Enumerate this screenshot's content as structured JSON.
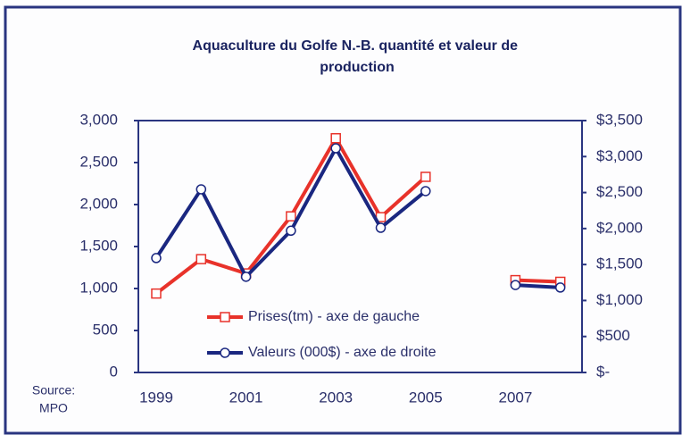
{
  "chart_data": {
    "type": "line",
    "title": "Aquaculture du Golfe N.-B. quantité et valeur de production",
    "source": [
      "Source:",
      "MPO"
    ],
    "categories": [
      "1999",
      null,
      "2001",
      null,
      "2003",
      null,
      "2005",
      null,
      "2007",
      null
    ],
    "series": [
      {
        "name": "Prises(tm) - axe de gauche",
        "color": "#e8322a",
        "marker": "square",
        "axis": "y",
        "values": [
          940,
          1350,
          1180,
          1860,
          2790,
          1850,
          2330,
          null,
          1100,
          1080
        ]
      },
      {
        "name": "Valeurs (000$) - axe de droite",
        "color": "#1a2780",
        "marker": "circle",
        "axis": "y2",
        "values": [
          1590,
          2545,
          1330,
          1970,
          3115,
          2010,
          2520,
          null,
          1215,
          1180
        ]
      }
    ],
    "ylim": [
      0,
      3000
    ],
    "yticks": [
      0,
      500,
      {
        "value": 1000,
        "label": "1,000"
      },
      {
        "value": 1500,
        "label": "1,500"
      },
      {
        "value": 2000,
        "label": "2,000"
      },
      {
        "value": 2500,
        "label": "2,500"
      },
      {
        "value": 3000,
        "label": "3,000"
      }
    ],
    "y2lim": [
      0,
      3500
    ],
    "y2ticks": [
      {
        "value": 0,
        "label": "$-"
      },
      {
        "value": 500,
        "label": "$500"
      },
      {
        "value": 1000,
        "label": "$1,000"
      },
      {
        "value": 1500,
        "label": "$1,500"
      },
      {
        "value": 2000,
        "label": "$2,000"
      },
      {
        "value": 2500,
        "label": "$2,500"
      },
      {
        "value": 3000,
        "label": "$3,000"
      },
      {
        "value": 3500,
        "label": "$3,500"
      }
    ],
    "legend": "bottom-center",
    "grid": false
  }
}
